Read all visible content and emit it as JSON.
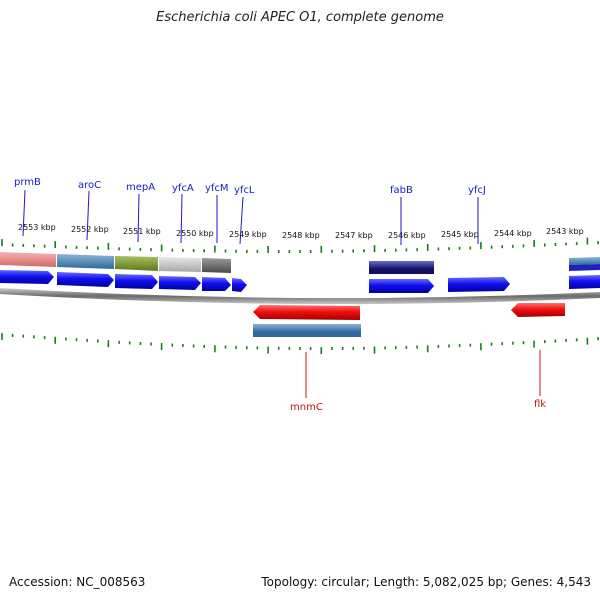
{
  "title": "Escherichia coli APEC O1, complete genome",
  "accession_text": "Accession: NC_008563",
  "summary_text": "Topology: circular; Length: 5,082,025 bp; Genes: 4,543",
  "colors": {
    "forward_gene": "#1a1aff",
    "reverse_gene": "#ff1a1a",
    "forward_label": "#1a1acc",
    "reverse_label": "#cc1111",
    "tick": "#1c7a1c",
    "backbone": "#8c8c8c"
  },
  "coordinate_labels": [
    "2553 kbp",
    "2552 kbp",
    "2551 kbp",
    "2550 kbp",
    "2549 kbp",
    "2548 kbp",
    "2547 kbp",
    "2546 kbp",
    "2545 kbp",
    "2544 kbp",
    "2543 kbp"
  ],
  "forward_gene_labels": [
    "prmB",
    "aroC",
    "mepA",
    "yfcA",
    "yfcM",
    "yfcL",
    "fabB",
    "yfcJ"
  ],
  "reverse_gene_labels": [
    "mnmC",
    "flk"
  ]
}
